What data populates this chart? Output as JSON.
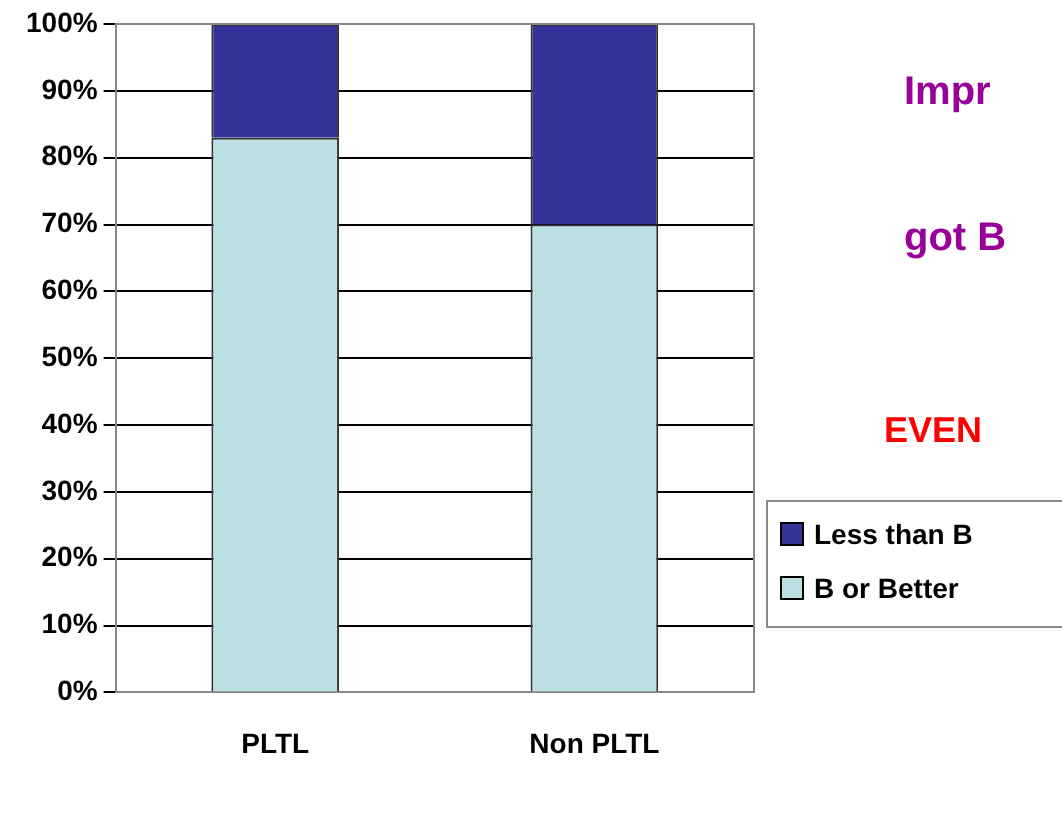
{
  "chart_data": {
    "type": "bar",
    "stacked": true,
    "categories": [
      "PLTL",
      "Non PLTL"
    ],
    "series": [
      {
        "name": "B or Better",
        "color": "#bbe0e3",
        "values": [
          83,
          70
        ]
      },
      {
        "name": "Less than B",
        "color": "#333399",
        "values": [
          17,
          30
        ]
      }
    ],
    "ylim": [
      0,
      100
    ],
    "yticks": [
      {
        "value": 0,
        "label": "0%"
      },
      {
        "value": 10,
        "label": "10%"
      },
      {
        "value": 20,
        "label": "20%"
      },
      {
        "value": 30,
        "label": "30%"
      },
      {
        "value": 40,
        "label": "40%"
      },
      {
        "value": 50,
        "label": "50%"
      },
      {
        "value": 60,
        "label": "60%"
      },
      {
        "value": 70,
        "label": "70%"
      },
      {
        "value": 80,
        "label": "80%"
      },
      {
        "value": 90,
        "label": "90%"
      },
      {
        "value": 100,
        "label": "100%"
      }
    ],
    "grid": "y",
    "legend": "right",
    "annotations": [
      "Impr",
      "got B",
      "EVEN"
    ]
  }
}
